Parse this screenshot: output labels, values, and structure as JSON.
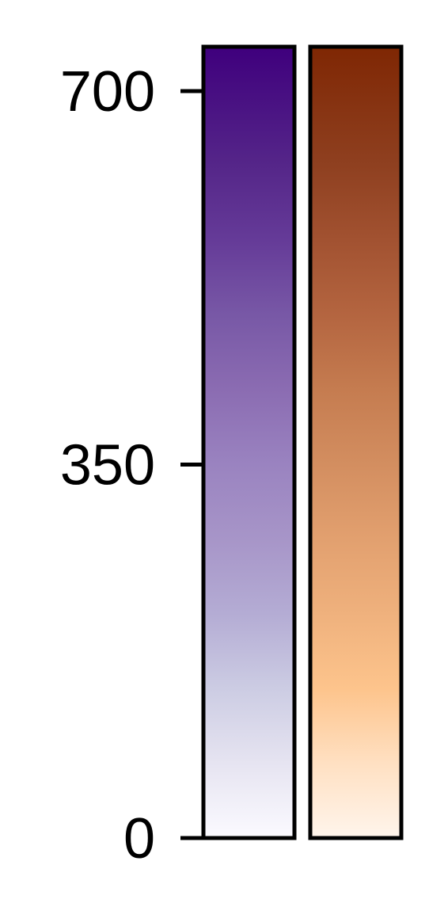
{
  "chart_data": {
    "type": "heatmap",
    "title": "",
    "ylabel": "",
    "ylim": [
      0,
      700
    ],
    "y_ticks": [
      {
        "value": 0,
        "label": "0"
      },
      {
        "value": 350,
        "label": "350"
      },
      {
        "value": 700,
        "label": "700"
      }
    ],
    "colorbars": [
      {
        "colormap": "purples",
        "stops": [
          {
            "value": 0,
            "color": "#fbfaff"
          },
          {
            "value": 70,
            "color": "#e6e4f1"
          },
          {
            "value": 140,
            "color": "#ccccE3"
          },
          {
            "value": 210,
            "color": "#b4acd4"
          },
          {
            "value": 280,
            "color": "#a795c8"
          },
          {
            "value": 350,
            "color": "#9a83c0"
          },
          {
            "value": 420,
            "color": "#8b6cb2"
          },
          {
            "value": 490,
            "color": "#7858a6"
          },
          {
            "value": 560,
            "color": "#653b98"
          },
          {
            "value": 630,
            "color": "#552689"
          },
          {
            "value": 740,
            "color": "#3f007d"
          }
        ]
      },
      {
        "colormap": "oranges",
        "stops": [
          {
            "value": 0,
            "color": "#fff5ec"
          },
          {
            "value": 70,
            "color": "#ffe0c2"
          },
          {
            "value": 140,
            "color": "#fdc48c"
          },
          {
            "value": 210,
            "color": "#efb17d"
          },
          {
            "value": 280,
            "color": "#e2a06f"
          },
          {
            "value": 350,
            "color": "#d38e60"
          },
          {
            "value": 420,
            "color": "#c57c50"
          },
          {
            "value": 490,
            "color": "#b46540"
          },
          {
            "value": 560,
            "color": "#a25231"
          },
          {
            "value": 630,
            "color": "#8f4020"
          },
          {
            "value": 740,
            "color": "#7f2704"
          }
        ]
      }
    ]
  }
}
